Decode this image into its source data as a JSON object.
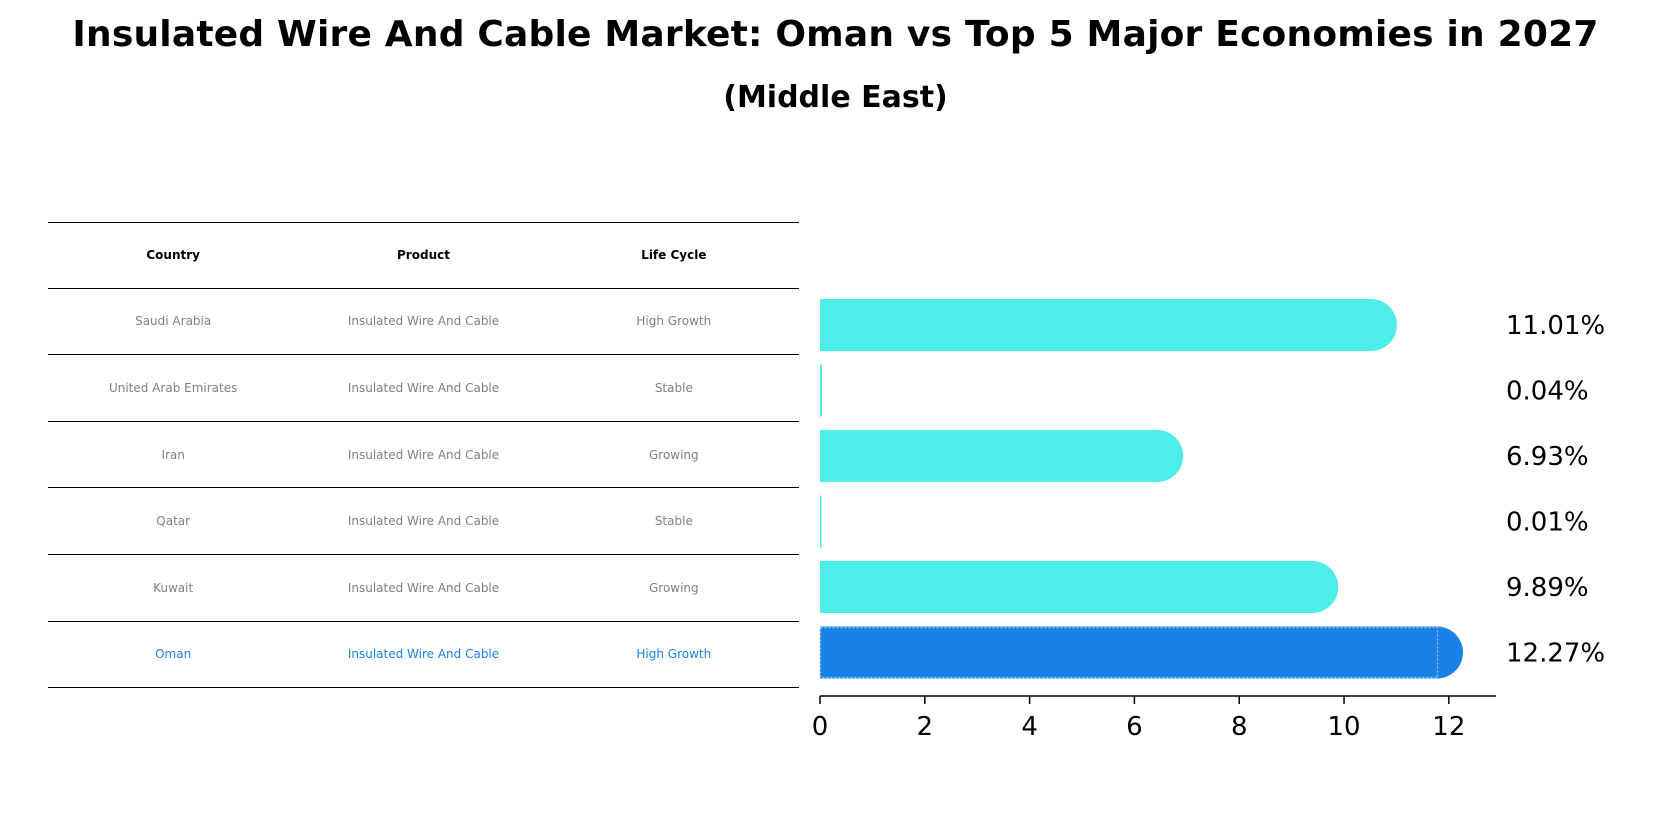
{
  "title": "Insulated Wire And Cable Market: Oman vs Top 5 Major Economies in 2027",
  "subtitle": "(Middle East)",
  "table": {
    "headers": [
      "Country",
      "Product",
      "Life Cycle"
    ],
    "rows": [
      [
        "Saudi Arabia",
        "Insulated Wire And Cable",
        "High Growth"
      ],
      [
        "United Arab Emirates",
        "Insulated Wire And Cable",
        "Stable"
      ],
      [
        "Iran",
        "Insulated Wire And Cable",
        "Growing"
      ],
      [
        "Qatar",
        "Insulated Wire And Cable",
        "Stable"
      ],
      [
        "Kuwait",
        "Insulated Wire And Cable",
        "Growing"
      ],
      [
        "Oman",
        "Insulated Wire And Cable",
        "High Growth"
      ]
    ],
    "highlight_row": 5
  },
  "colors": {
    "bar": "#4deeea",
    "highlight_bar": "#1a82e6",
    "highlight_text": "#1a82e6",
    "muted_text": "#808080"
  },
  "chart_data": {
    "type": "bar",
    "orientation": "horizontal",
    "categories": [
      "Saudi Arabia",
      "United Arab Emirates",
      "Iran",
      "Qatar",
      "Kuwait",
      "Oman"
    ],
    "values": [
      11.01,
      0.04,
      6.93,
      0.01,
      9.89,
      12.27
    ],
    "value_labels": [
      "11.01%",
      "0.04%",
      "6.93%",
      "0.01%",
      "9.89%",
      "12.27%"
    ],
    "xlim": [
      0,
      12.9
    ],
    "xticks": [
      0,
      2,
      4,
      6,
      8,
      10,
      12
    ],
    "highlight_index": 5,
    "grid": false
  }
}
